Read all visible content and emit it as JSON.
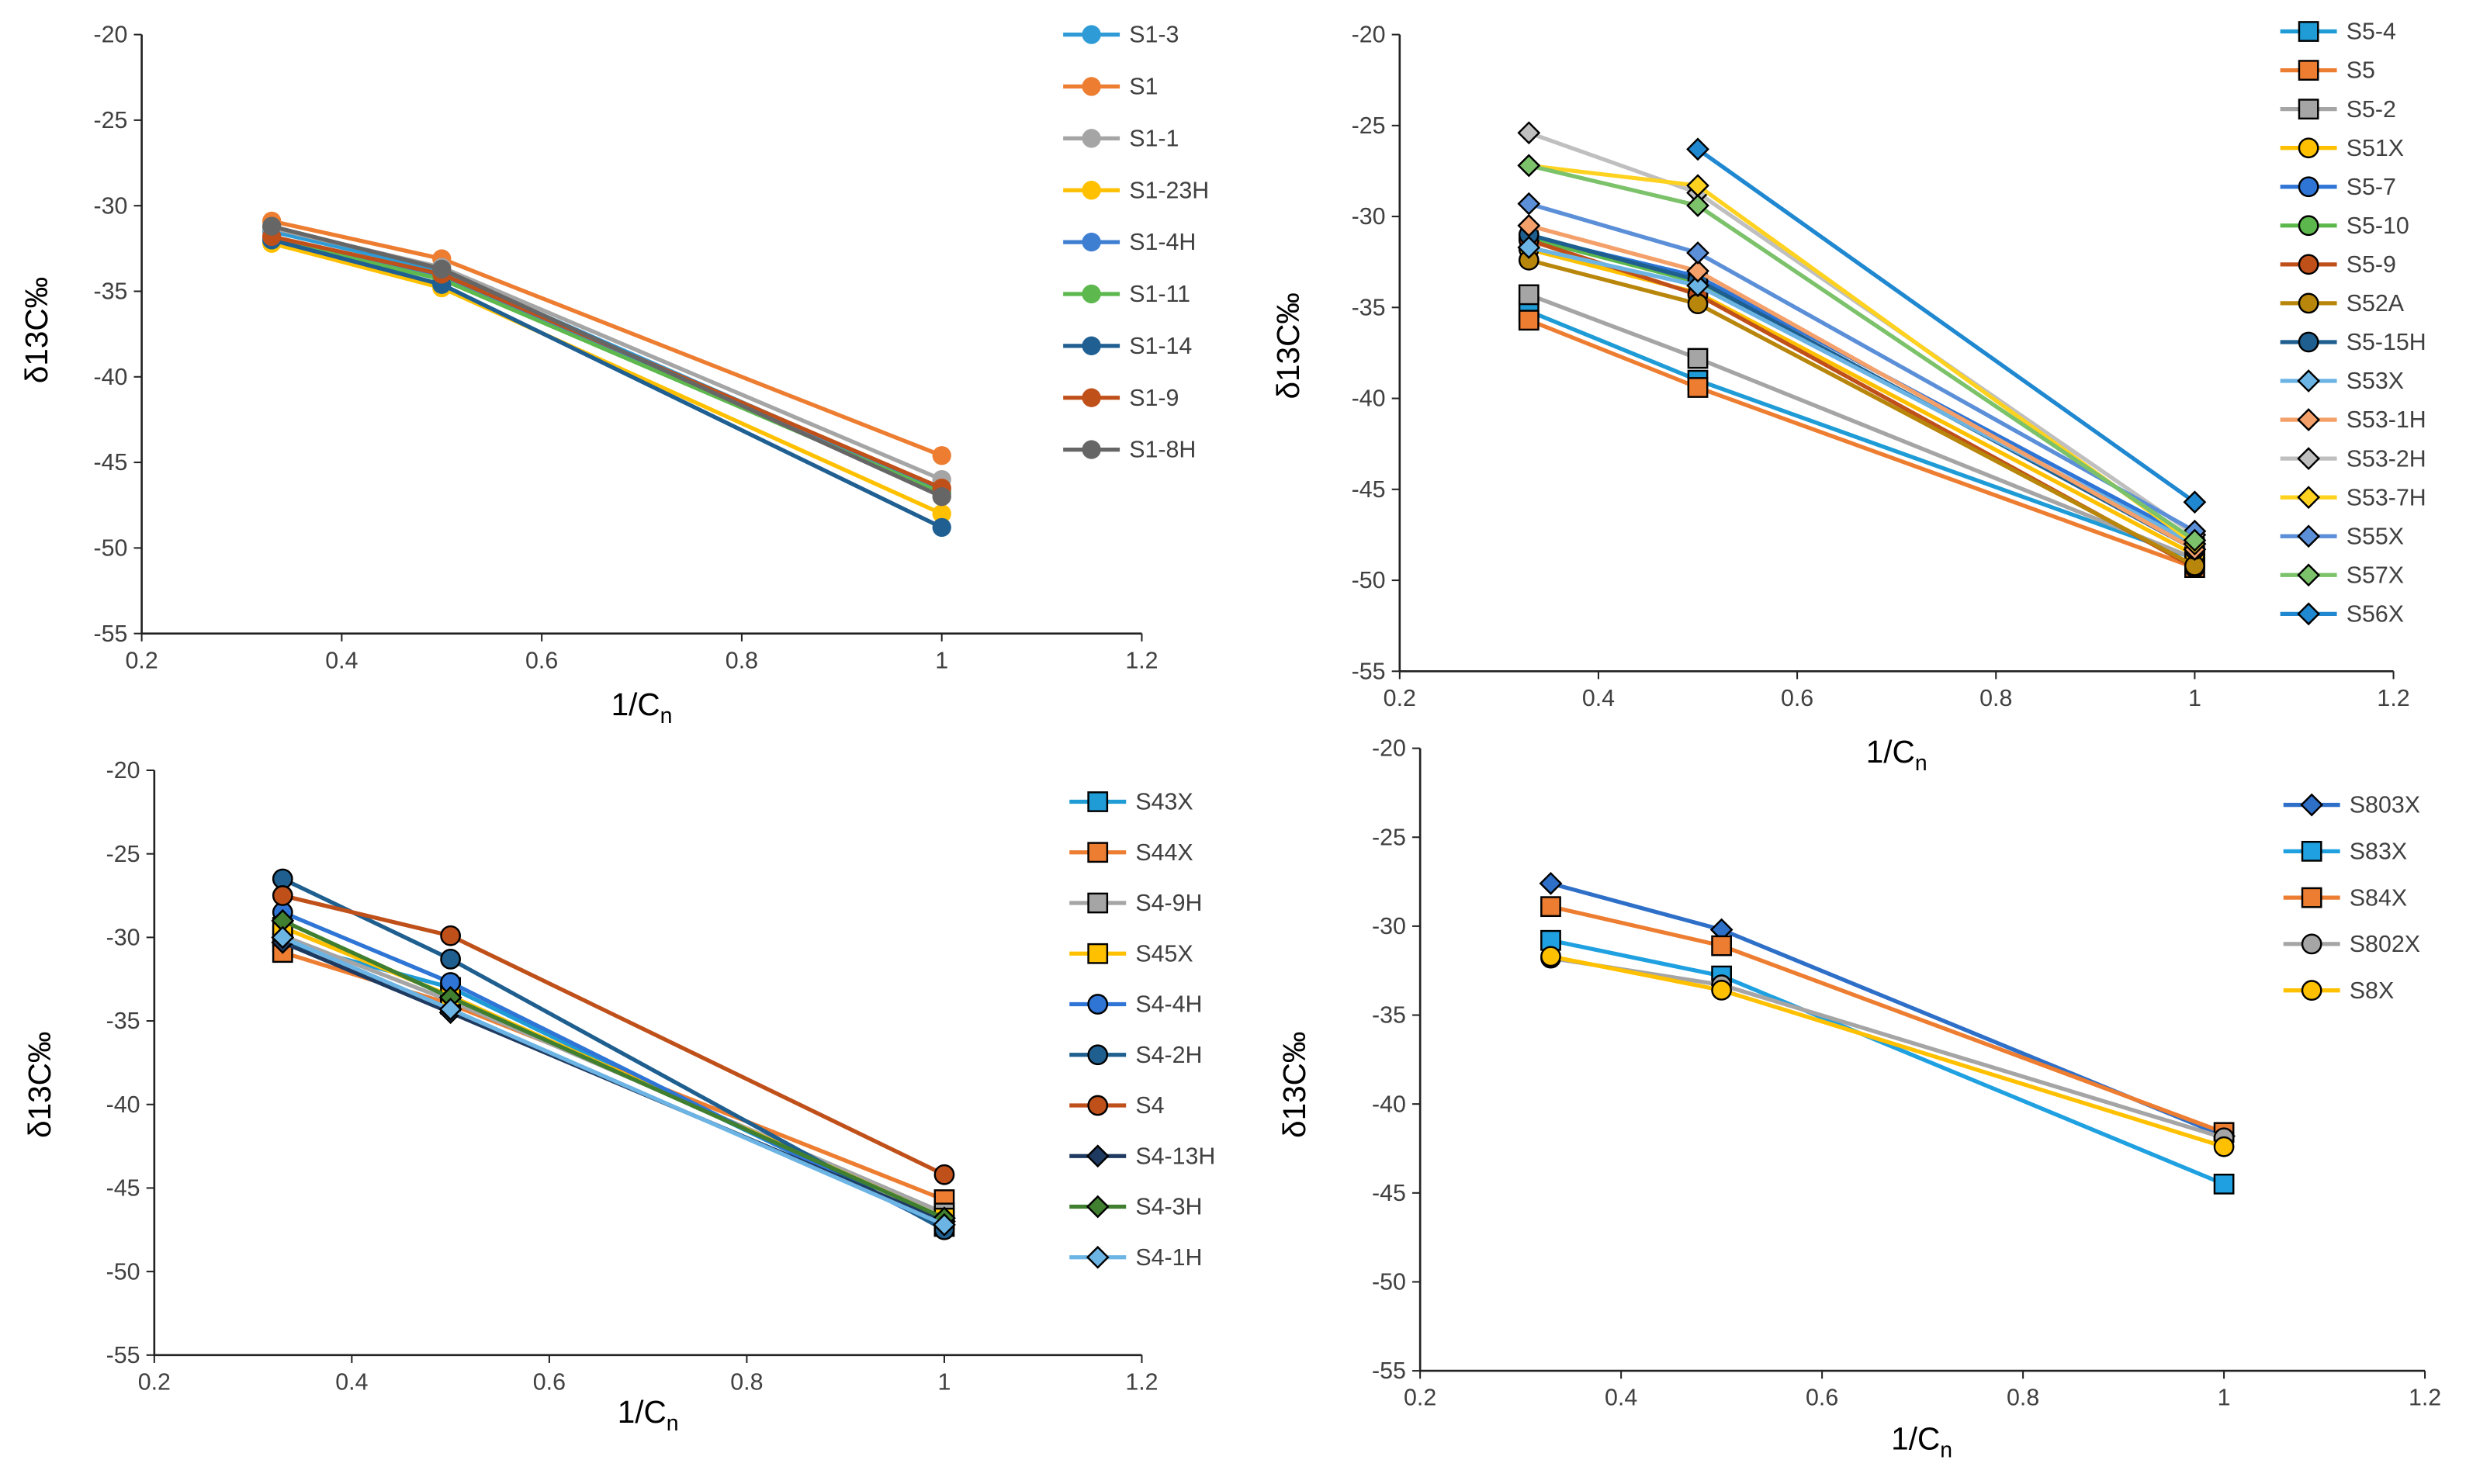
{
  "chart_data": [
    {
      "type": "line",
      "id": "s1",
      "xlabel": "1/Cn",
      "ylabel": "δ13C‰",
      "xlim": [
        0.2,
        1.2
      ],
      "ylim": [
        -55,
        -20
      ],
      "xticks": [
        "0.2",
        "0.4",
        "0.6",
        "0.8",
        "1",
        "1.2"
      ],
      "yticks": [
        "-20",
        "-25",
        "-30",
        "-35",
        "-40",
        "-45",
        "-50",
        "-55"
      ],
      "x": [
        0.33,
        0.5,
        1
      ],
      "grid": false,
      "legend": "right",
      "series": [
        {
          "name": "S1-3",
          "marker": "circle",
          "color": "#2E9BD6",
          "values": [
            -31.5,
            -33.8,
            -46.6
          ]
        },
        {
          "name": "S1",
          "marker": "circle",
          "color": "#ED7D31",
          "values": [
            -30.9,
            -33.1,
            -44.6
          ]
        },
        {
          "name": "S1-1",
          "marker": "circle",
          "color": "#A5A5A5",
          "values": [
            -31.3,
            -33.6,
            -46.0
          ]
        },
        {
          "name": "S1-23H",
          "marker": "circle",
          "color": "#FFC000",
          "values": [
            -32.2,
            -34.8,
            -48.0
          ]
        },
        {
          "name": "S1-4H",
          "marker": "circle",
          "color": "#3F7FD2",
          "values": [
            -31.8,
            -34.2,
            -46.8
          ]
        },
        {
          "name": "S1-11",
          "marker": "circle",
          "color": "#5DB84E",
          "values": [
            -32.0,
            -34.3,
            -46.8
          ]
        },
        {
          "name": "S1-14",
          "marker": "circle",
          "color": "#1F5F91",
          "values": [
            -32.0,
            -34.6,
            -48.8
          ]
        },
        {
          "name": "S1-9",
          "marker": "circle",
          "color": "#C0501A",
          "values": [
            -31.8,
            -34.0,
            -46.5
          ]
        },
        {
          "name": "S1-8H",
          "marker": "circle",
          "color": "#666666",
          "values": [
            -31.2,
            -33.7,
            -47.0
          ]
        }
      ]
    },
    {
      "type": "line",
      "id": "s5",
      "xlabel": "1/Cn",
      "ylabel": "δ13C‰",
      "xlim": [
        0.2,
        1.2
      ],
      "ylim": [
        -55,
        -20
      ],
      "xticks": [
        "0.2",
        "0.4",
        "0.6",
        "0.8",
        "1",
        "1.2"
      ],
      "yticks": [
        "-20",
        "-25",
        "-30",
        "-35",
        "-40",
        "-45",
        "-50",
        "-55"
      ],
      "x": [
        0.33,
        0.5,
        1
      ],
      "grid": false,
      "legend": "right",
      "series": [
        {
          "name": "S5-4",
          "marker": "square",
          "color": "#1F9BD6",
          "values": [
            -35.2,
            -39.0,
            -48.8
          ]
        },
        {
          "name": "S5",
          "marker": "square",
          "color": "#ED7D31",
          "values": [
            -35.7,
            -39.4,
            -49.3
          ]
        },
        {
          "name": "S5-2",
          "marker": "square",
          "color": "#A5A5A5",
          "values": [
            -34.3,
            -37.8,
            -48.8
          ]
        },
        {
          "name": "S51X",
          "marker": "circle",
          "color": "#FFC000",
          "values": [
            -31.8,
            -34.2,
            -48.6
          ]
        },
        {
          "name": "S5-7",
          "marker": "circle",
          "color": "#2E75D6",
          "values": [
            -31.1,
            -33.3,
            -47.8
          ]
        },
        {
          "name": "S5-10",
          "marker": "circle",
          "color": "#5CB84C",
          "values": [
            -31.2,
            -33.6,
            -48.2
          ]
        },
        {
          "name": "S5-9",
          "marker": "circle",
          "color": "#C0501A",
          "values": [
            -31.3,
            -34.3,
            -49.3
          ]
        },
        {
          "name": "S52A",
          "marker": "circle",
          "color": "#B8860B",
          "values": [
            -32.4,
            -34.8,
            -49.2
          ]
        },
        {
          "name": "S5-15H",
          "marker": "circle",
          "color": "#1F5F8F",
          "values": [
            -31.0,
            -33.5,
            -48.3
          ]
        },
        {
          "name": "S53X",
          "marker": "diamond",
          "color": "#6CB4E4",
          "values": [
            -31.7,
            -33.8,
            -48.0
          ]
        },
        {
          "name": "S53-1H",
          "marker": "diamond",
          "color": "#F4A06A",
          "values": [
            -30.5,
            -33.0,
            -48.3
          ]
        },
        {
          "name": "S53-2H",
          "marker": "diamond",
          "color": "#BFBFBF",
          "values": [
            -25.4,
            -28.7,
            -47.5
          ]
        },
        {
          "name": "S53-7H",
          "marker": "diamond",
          "color": "#FFD21F",
          "values": [
            -27.2,
            -28.3,
            -48.0
          ]
        },
        {
          "name": "S55X",
          "marker": "diamond",
          "color": "#5B8FD8",
          "values": [
            -29.3,
            -32.0,
            -47.3
          ]
        },
        {
          "name": "S57X",
          "marker": "diamond",
          "color": "#7CC26A",
          "values": [
            -27.2,
            -29.4,
            -47.8
          ]
        },
        {
          "name": "S56X",
          "marker": "diamond",
          "color": "#1F88D0",
          "values": [
            null,
            -26.3,
            -45.7
          ]
        }
      ]
    },
    {
      "type": "line",
      "id": "s4",
      "xlabel": "1/Cn",
      "ylabel": "δ13C‰",
      "xlim": [
        0.2,
        1.2
      ],
      "ylim": [
        -55,
        -20
      ],
      "xticks": [
        "0.2",
        "0.4",
        "0.6",
        "0.8",
        "1",
        "1.2"
      ],
      "yticks": [
        "-20",
        "-25",
        "-30",
        "-35",
        "-40",
        "-45",
        "-50",
        "-55"
      ],
      "x": [
        0.33,
        0.5,
        1
      ],
      "grid": false,
      "legend": "right",
      "series": [
        {
          "name": "S43X",
          "marker": "square",
          "color": "#1F9BD6",
          "values": [
            -30.3,
            -33.0,
            -47.3
          ]
        },
        {
          "name": "S44X",
          "marker": "square",
          "color": "#ED7D31",
          "values": [
            -30.9,
            -34.0,
            -45.7
          ]
        },
        {
          "name": "S4-9H",
          "marker": "square",
          "color": "#A5A5A5",
          "values": [
            -29.9,
            -33.8,
            -46.5
          ]
        },
        {
          "name": "S45X",
          "marker": "square",
          "color": "#FFC000",
          "values": [
            -29.4,
            -33.5,
            -46.8
          ]
        },
        {
          "name": "S4-4H",
          "marker": "circle",
          "color": "#2E75D6",
          "values": [
            -28.5,
            -32.7,
            -47.4
          ]
        },
        {
          "name": "S4-2H",
          "marker": "circle",
          "color": "#1F5F8F",
          "values": [
            -26.5,
            -31.3,
            -47.5
          ]
        },
        {
          "name": "S4",
          "marker": "circle",
          "color": "#C0501A",
          "values": [
            -27.5,
            -29.9,
            -44.2
          ]
        },
        {
          "name": "S4-13H",
          "marker": "diamond",
          "color": "#1F3A60",
          "values": [
            -30.3,
            -34.5,
            -47.0
          ]
        },
        {
          "name": "S4-3H",
          "marker": "diamond",
          "color": "#3F7F2F",
          "values": [
            -29.0,
            -33.6,
            -46.8
          ]
        },
        {
          "name": "S4-1H",
          "marker": "diamond",
          "color": "#6CB4E4",
          "values": [
            -30.0,
            -34.3,
            -47.2
          ]
        }
      ]
    },
    {
      "type": "line",
      "id": "s8",
      "xlabel": "1/Cn",
      "ylabel": "δ13C‰",
      "xlim": [
        0.2,
        1.2
      ],
      "ylim": [
        -55,
        -20
      ],
      "xticks": [
        "0.2",
        "0.4",
        "0.6",
        "0.8",
        "1",
        "1.2"
      ],
      "yticks": [
        "-20",
        "-25",
        "-30",
        "-35",
        "-40",
        "-45",
        "-50",
        "-55"
      ],
      "x": [
        0.33,
        0.5,
        1
      ],
      "grid": false,
      "legend": "right",
      "series": [
        {
          "name": "S803X",
          "marker": "diamond",
          "color": "#2E6FC8",
          "values": [
            -27.6,
            -30.2,
            -41.8
          ]
        },
        {
          "name": "S83X",
          "marker": "square",
          "color": "#1FA0E0",
          "values": [
            -30.8,
            -32.8,
            -44.5
          ]
        },
        {
          "name": "S84X",
          "marker": "square",
          "color": "#ED7D31",
          "values": [
            -28.9,
            -31.1,
            -41.6
          ]
        },
        {
          "name": "S802X",
          "marker": "circle",
          "color": "#A5A5A5",
          "values": [
            -31.8,
            -33.3,
            -41.9
          ]
        },
        {
          "name": "S8X",
          "marker": "circle",
          "color": "#FFC000",
          "values": [
            -31.7,
            -33.6,
            -42.4
          ]
        }
      ]
    }
  ]
}
